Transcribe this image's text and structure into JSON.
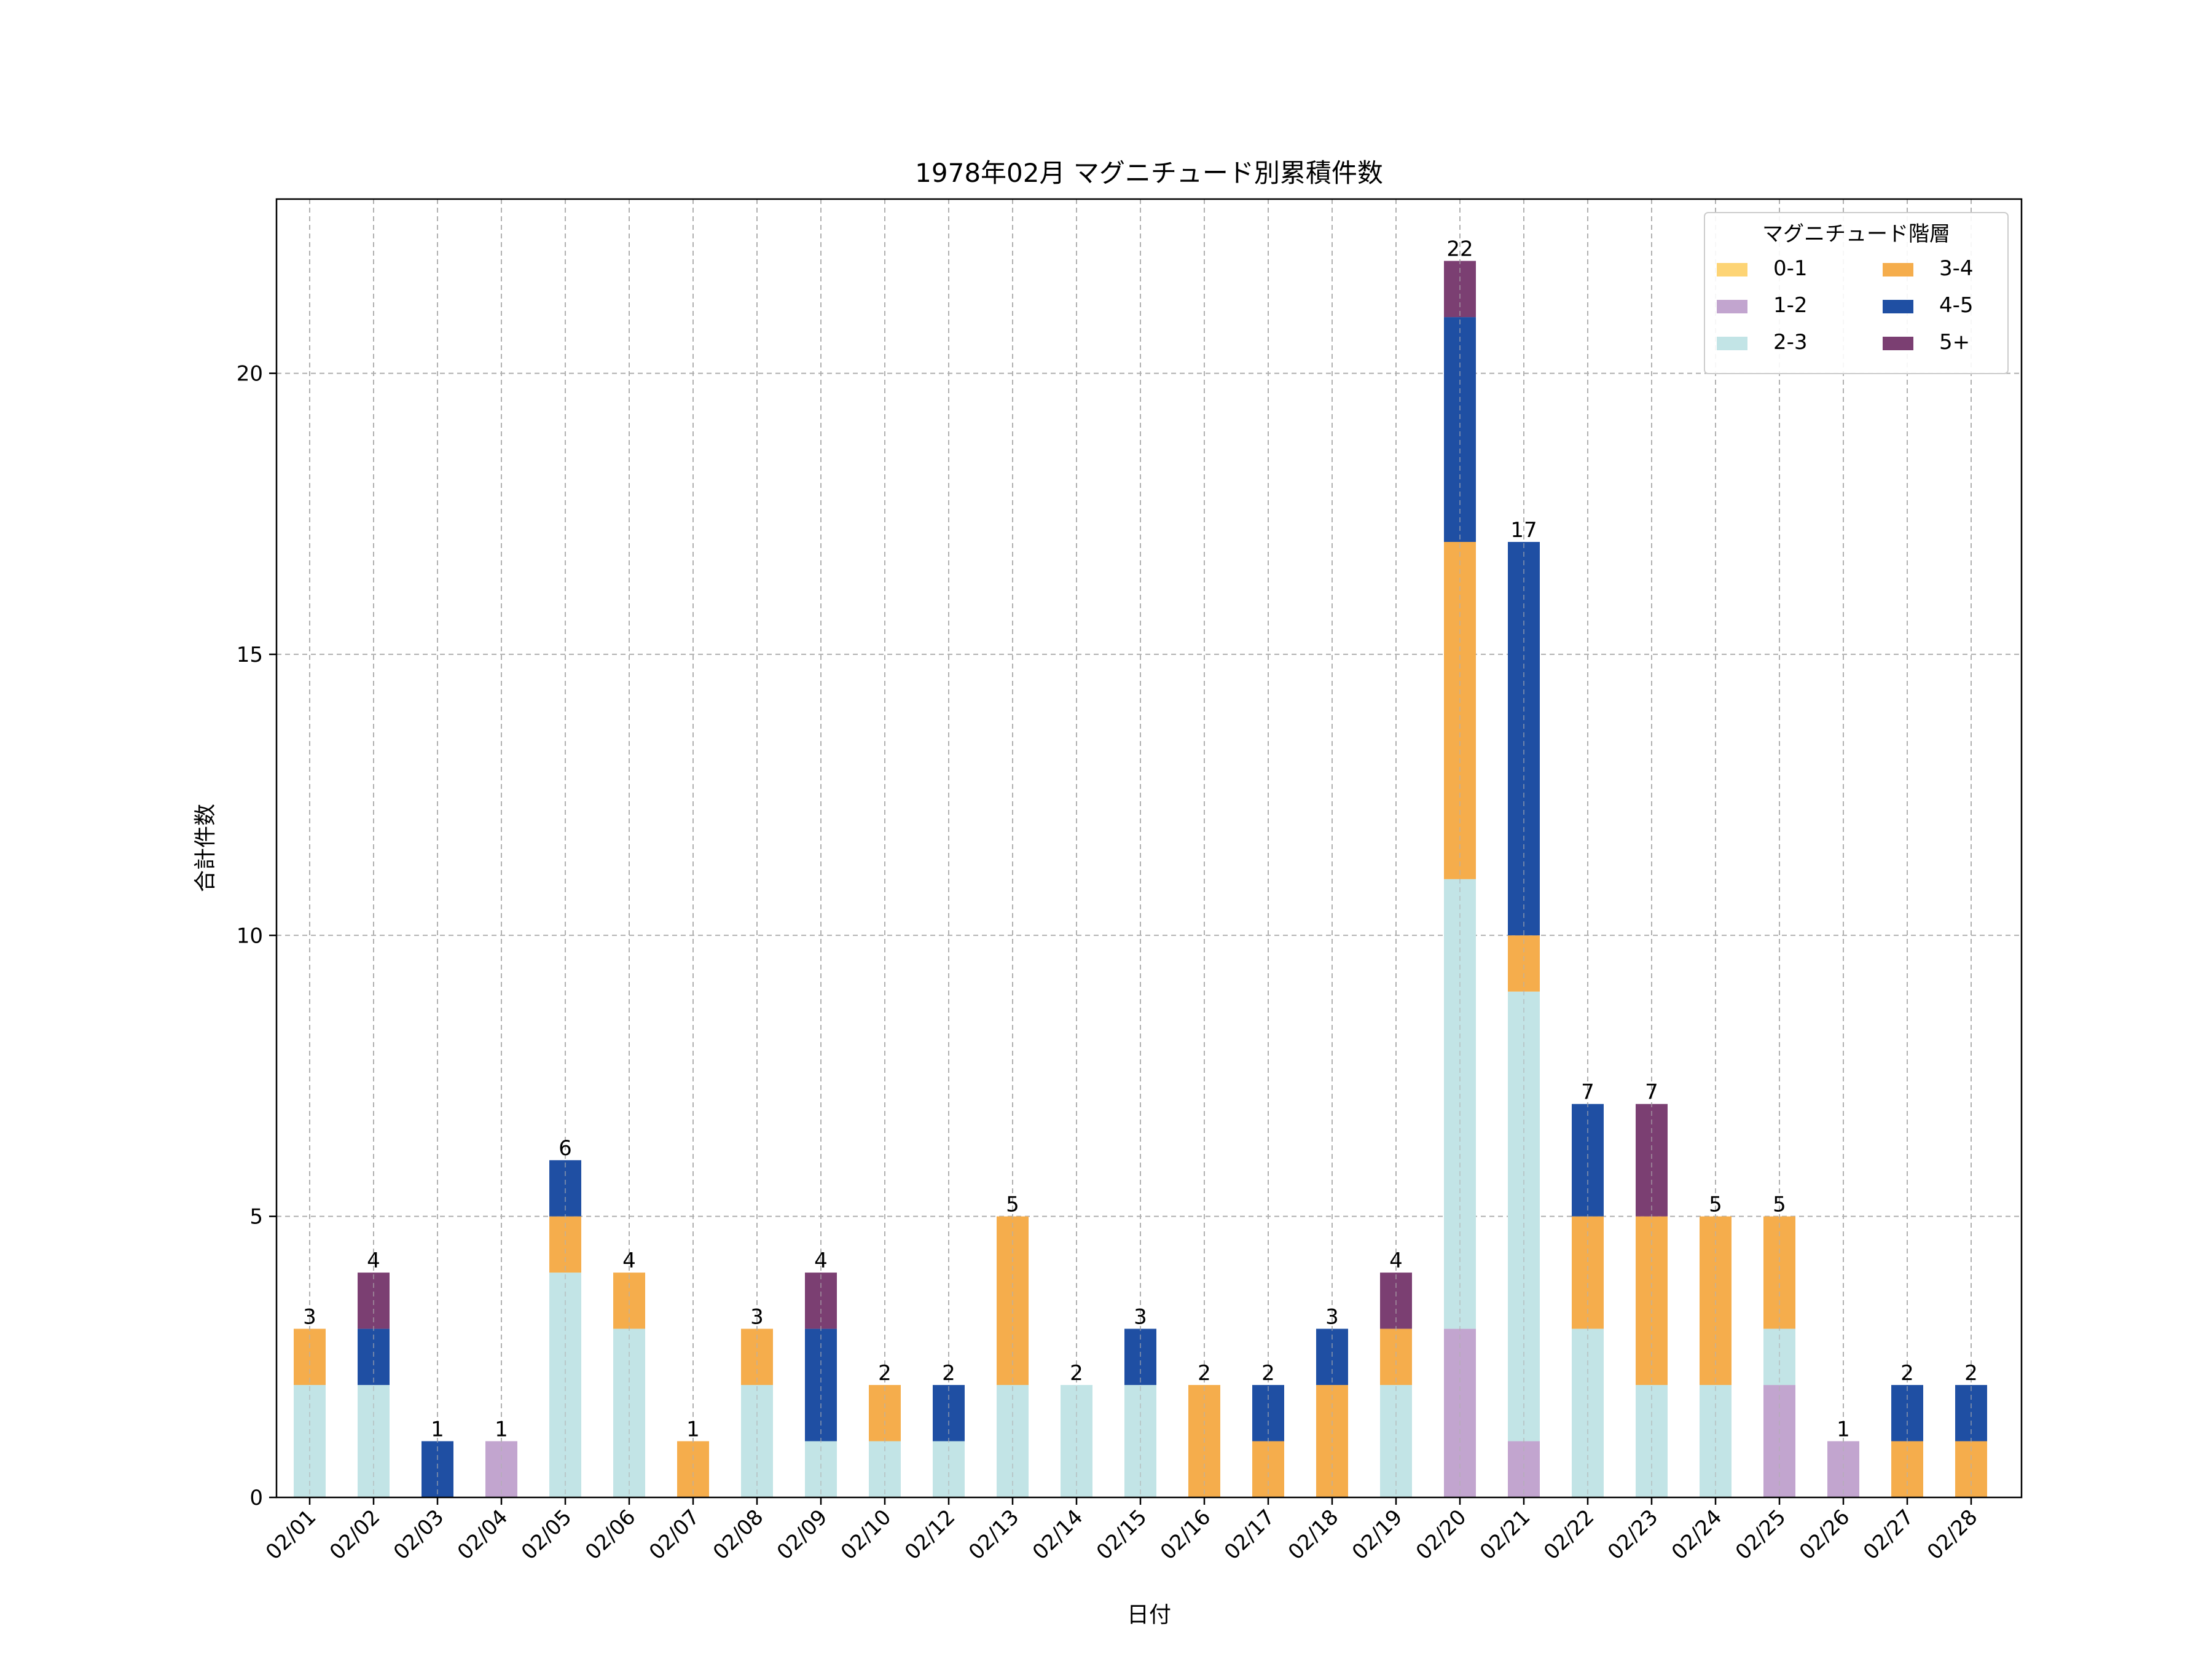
{
  "chart_data": {
    "type": "bar",
    "stacked": true,
    "title": "1978年02月 マグニチュード別累積件数",
    "xlabel": "日付",
    "ylabel": "合計件数",
    "ylim": [
      0,
      23.1
    ],
    "yticks": [
      0,
      5,
      10,
      15,
      20
    ],
    "grid": true,
    "legend_title": "マグニチュード階層",
    "legend_position": "top-right",
    "categories": [
      "02/01",
      "02/02",
      "02/03",
      "02/04",
      "02/05",
      "02/06",
      "02/07",
      "02/08",
      "02/09",
      "02/10",
      "02/12",
      "02/13",
      "02/14",
      "02/15",
      "02/16",
      "02/17",
      "02/18",
      "02/19",
      "02/20",
      "02/21",
      "02/22",
      "02/23",
      "02/24",
      "02/25",
      "02/26",
      "02/27",
      "02/28"
    ],
    "series": [
      {
        "name": "0-1",
        "color": "#FDD475",
        "values": [
          0,
          0,
          0,
          0,
          0,
          0,
          0,
          0,
          0,
          0,
          0,
          0,
          0,
          0,
          0,
          0,
          0,
          0,
          0,
          0,
          0,
          0,
          0,
          0,
          0,
          0,
          0
        ]
      },
      {
        "name": "1-2",
        "color": "#C2A5CF",
        "values": [
          0,
          0,
          0,
          1,
          0,
          0,
          0,
          0,
          0,
          0,
          0,
          0,
          0,
          0,
          0,
          0,
          0,
          0,
          3,
          1,
          0,
          0,
          0,
          2,
          1,
          0,
          0
        ]
      },
      {
        "name": "2-3",
        "color": "#C2E4E6",
        "values": [
          2,
          2,
          0,
          0,
          4,
          3,
          0,
          2,
          1,
          1,
          1,
          2,
          2,
          2,
          0,
          0,
          0,
          2,
          8,
          8,
          3,
          2,
          2,
          1,
          0,
          0,
          0
        ]
      },
      {
        "name": "3-4",
        "color": "#F5AD4C",
        "values": [
          1,
          0,
          0,
          0,
          1,
          1,
          1,
          1,
          0,
          1,
          0,
          3,
          0,
          0,
          2,
          1,
          2,
          1,
          6,
          1,
          2,
          3,
          3,
          2,
          0,
          1,
          1
        ]
      },
      {
        "name": "4-5",
        "color": "#1F4FA3",
        "values": [
          0,
          1,
          1,
          0,
          1,
          0,
          0,
          0,
          2,
          0,
          1,
          0,
          0,
          1,
          0,
          1,
          1,
          0,
          4,
          7,
          2,
          0,
          0,
          0,
          0,
          1,
          1
        ]
      },
      {
        "name": "5+",
        "color": "#7B3F72",
        "values": [
          0,
          1,
          0,
          0,
          0,
          0,
          0,
          0,
          1,
          0,
          0,
          0,
          0,
          0,
          0,
          0,
          0,
          1,
          1,
          0,
          0,
          2,
          0,
          0,
          0,
          0,
          0
        ]
      }
    ],
    "totals": [
      3,
      4,
      1,
      1,
      6,
      4,
      1,
      3,
      4,
      2,
      2,
      5,
      2,
      3,
      2,
      2,
      3,
      4,
      22,
      17,
      7,
      7,
      5,
      5,
      1,
      2,
      2
    ]
  }
}
